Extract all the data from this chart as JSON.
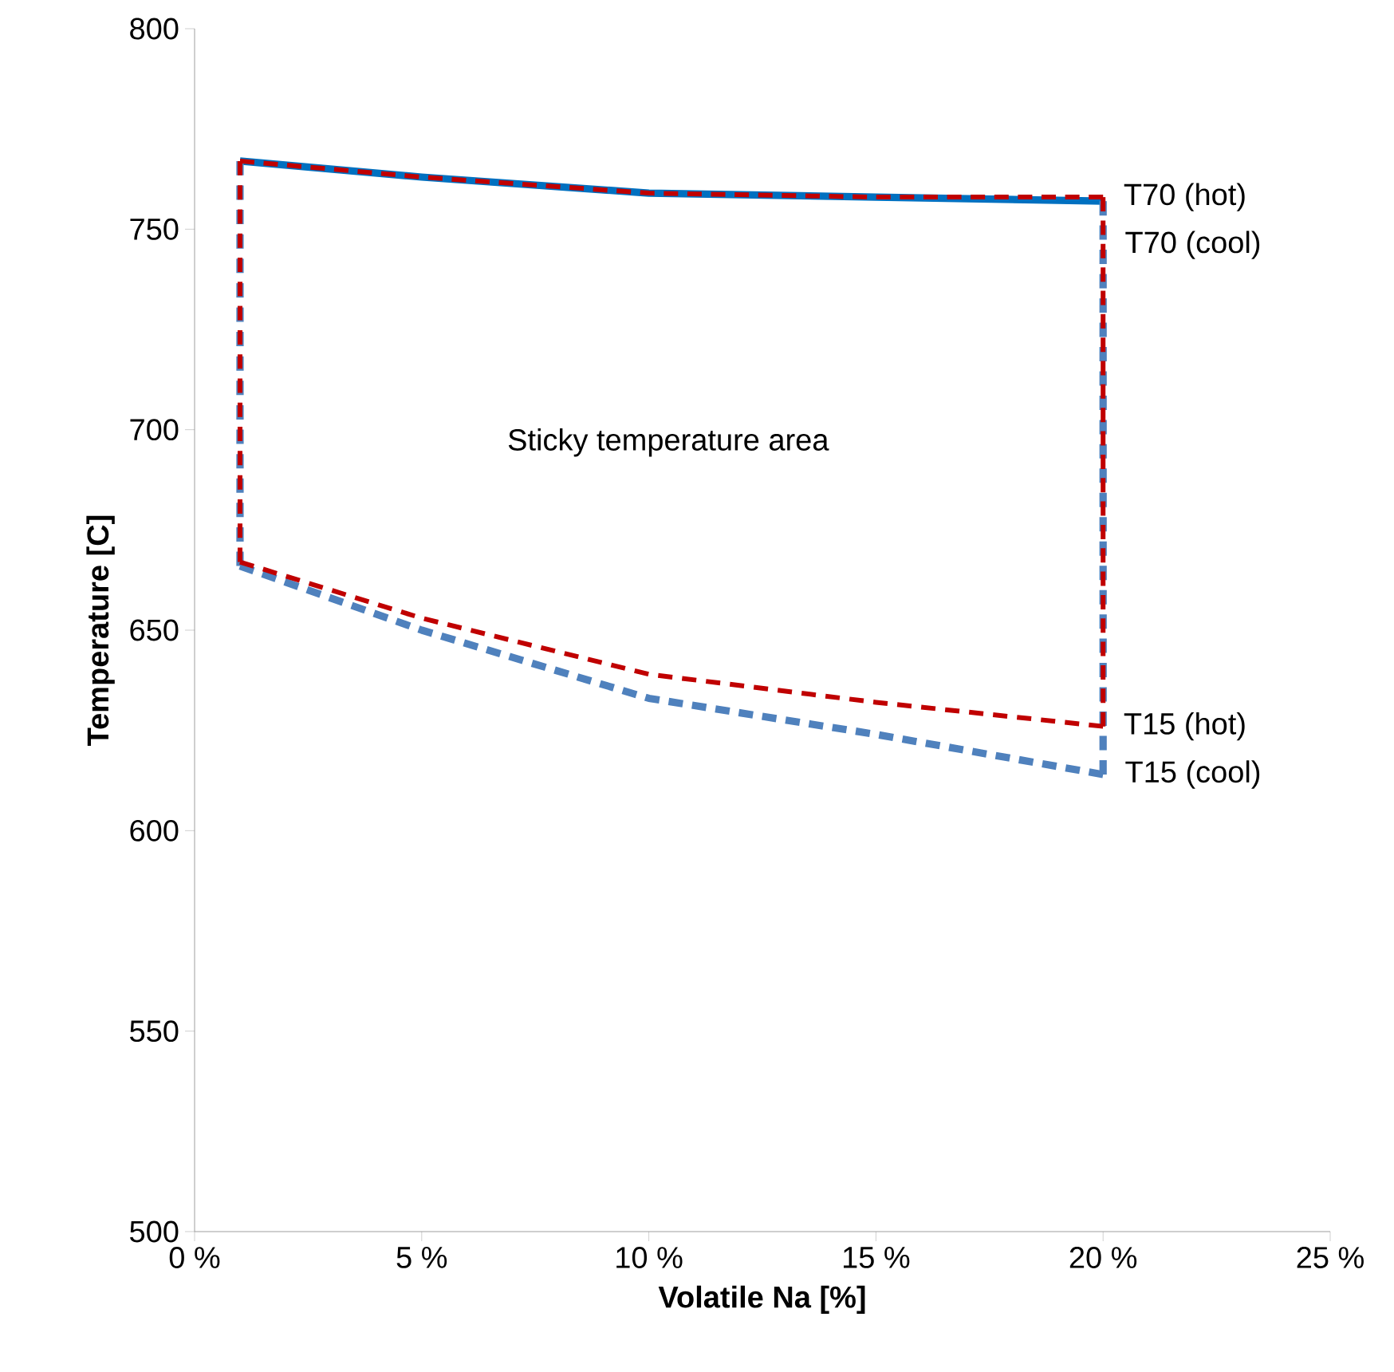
{
  "chart_data": {
    "type": "line",
    "xlabel": "Volatile Na [%]",
    "ylabel": "Temperature [C]",
    "xlim": [
      0,
      25
    ],
    "ylim": [
      500,
      800
    ],
    "xticks": [
      {
        "value": 0,
        "label": "0 %"
      },
      {
        "value": 5,
        "label": "5 %"
      },
      {
        "value": 10,
        "label": "10 %"
      },
      {
        "value": 15,
        "label": "15 %"
      },
      {
        "value": 20,
        "label": "20 %"
      },
      {
        "value": 25,
        "label": "25 %"
      }
    ],
    "yticks": [
      500,
      550,
      600,
      650,
      700,
      750,
      800
    ],
    "marker": "none",
    "annotations": [
      "Sticky temperature area"
    ],
    "series": [
      {
        "name": "T70 (cool)",
        "color": "#0070c0",
        "line_style": "solid",
        "x": [
          1,
          5,
          10,
          15,
          20
        ],
        "values": [
          767,
          763,
          759,
          758,
          757
        ]
      },
      {
        "name": "T15 (cool)",
        "color": "#4f81bd",
        "line_style": "dashed",
        "x": [
          1,
          5,
          10,
          15,
          20
        ],
        "values": [
          666,
          650,
          633,
          624,
          614
        ]
      },
      {
        "color": "#4f81bd",
        "line_style": "dashed",
        "x": [
          1,
          1
        ],
        "values": [
          666,
          767
        ]
      },
      {
        "color": "#4f81bd",
        "line_style": "dashed",
        "x": [
          20,
          20
        ],
        "values": [
          614,
          757
        ]
      },
      {
        "name": "T70 (hot)",
        "color": "#c00000",
        "line_style": "dashed",
        "x": [
          1,
          5,
          10,
          15,
          20
        ],
        "values": [
          767,
          763,
          759,
          758,
          758
        ]
      },
      {
        "name": "T15 (hot)",
        "color": "#c00000",
        "line_style": "dashed",
        "x": [
          1,
          5,
          10,
          15,
          20
        ],
        "values": [
          667,
          653,
          639,
          632,
          626
        ]
      },
      {
        "color": "#c00000",
        "line_style": "dashed",
        "x": [
          1,
          1
        ],
        "values": [
          667,
          767
        ]
      },
      {
        "color": "#c00000",
        "line_style": "dashed",
        "x": [
          20,
          20
        ],
        "values": [
          626,
          758
        ]
      }
    ]
  }
}
